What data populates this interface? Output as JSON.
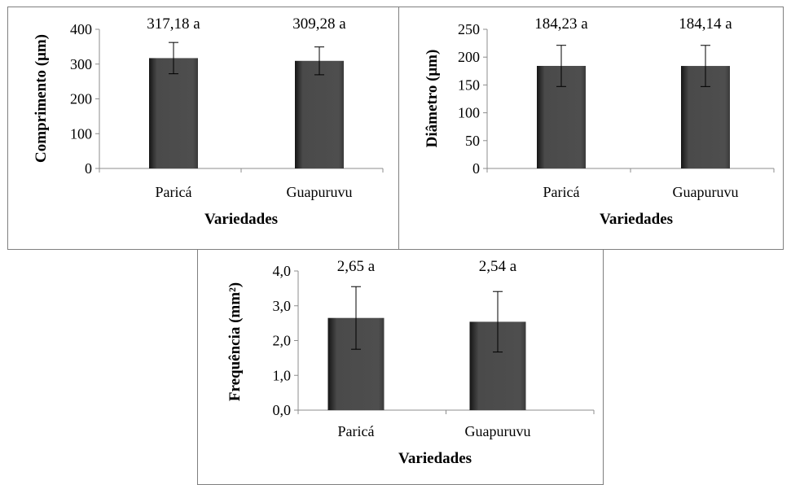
{
  "chart_data": [
    {
      "type": "bar",
      "categories": [
        "Paricá",
        "Guapuruvu"
      ],
      "values": [
        317.18,
        309.28
      ],
      "errors": [
        45,
        40
      ],
      "data_labels": [
        "317,18 a",
        "309,28 a"
      ],
      "xlabel": "Variedades",
      "ylabel": "Comprimento (μm)",
      "ylim": [
        0,
        400
      ],
      "yticks": [
        "0",
        "100",
        "200",
        "300",
        "400"
      ],
      "grid": false,
      "bar_color": "#4a4a4a"
    },
    {
      "type": "bar",
      "categories": [
        "Paricá",
        "Guapuruvu"
      ],
      "values": [
        184.23,
        184.14
      ],
      "errors": [
        37,
        37
      ],
      "data_labels": [
        "184,23 a",
        "184,14 a"
      ],
      "xlabel": "Variedades",
      "ylabel": "Diâmetro (μm)",
      "ylim": [
        0,
        250
      ],
      "yticks": [
        "0",
        "50",
        "100",
        "150",
        "200",
        "250"
      ],
      "grid": false,
      "bar_color": "#4a4a4a"
    },
    {
      "type": "bar",
      "categories": [
        "Paricá",
        "Guapuruvu"
      ],
      "values": [
        2.65,
        2.54
      ],
      "errors": [
        0.9,
        0.87
      ],
      "data_labels": [
        "2,65 a",
        "2,54 a"
      ],
      "xlabel": "Variedades",
      "ylabel": "Frequência (mm²)",
      "ylim": [
        0,
        4
      ],
      "yticks": [
        "0,0",
        "1,0",
        "2,0",
        "3,0",
        "4,0"
      ],
      "grid": false,
      "bar_color": "#4a4a4a"
    }
  ]
}
